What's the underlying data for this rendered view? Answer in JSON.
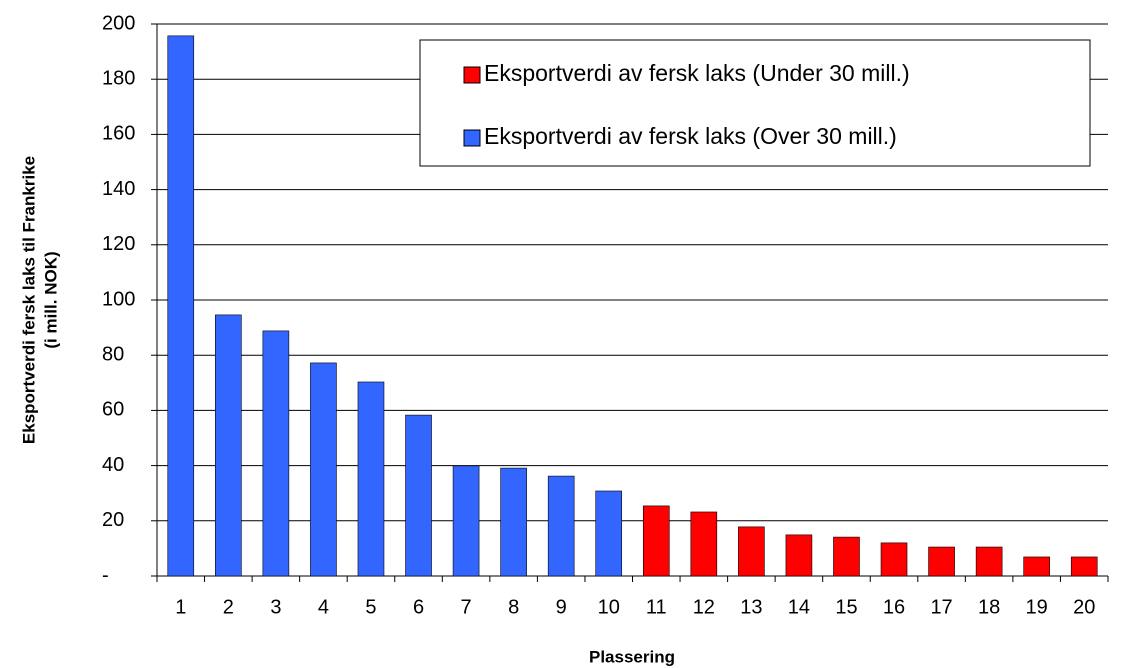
{
  "chart_data": {
    "type": "bar",
    "categories": [
      "1",
      "2",
      "3",
      "4",
      "5",
      "6",
      "7",
      "8",
      "9",
      "10",
      "11",
      "12",
      "13",
      "14",
      "15",
      "16",
      "17",
      "18",
      "19",
      "20"
    ],
    "series": [
      {
        "name": "Eksportverdi av fersk laks (Under 30 mill.)",
        "color": "#ff0000",
        "values": [
          null,
          null,
          null,
          null,
          null,
          null,
          null,
          null,
          null,
          null,
          25.4,
          23.2,
          17.8,
          14.9,
          14.1,
          12,
          10.5,
          10.5,
          6.9,
          6.9
        ]
      },
      {
        "name": "Eksportverdi av fersk laks (Over 30 mill.)",
        "color": "#3366ff",
        "values": [
          195.7,
          94.6,
          88.8,
          77.2,
          70.3,
          58.3,
          39.9,
          39.1,
          36.2,
          30.8,
          null,
          null,
          null,
          null,
          null,
          null,
          null,
          null,
          null,
          null
        ]
      }
    ],
    "ylabel": [
      "Eksportverdi fersk laks til Frankrike",
      "(i mill. NOK)"
    ],
    "xlabel": "Plassering",
    "ylim": [
      0,
      200
    ],
    "yticks": [
      {
        "value": 0,
        "label": "-"
      },
      20,
      40,
      60,
      80,
      100,
      120,
      140,
      160,
      180,
      200
    ],
    "grid": true,
    "legend": "upper right"
  }
}
